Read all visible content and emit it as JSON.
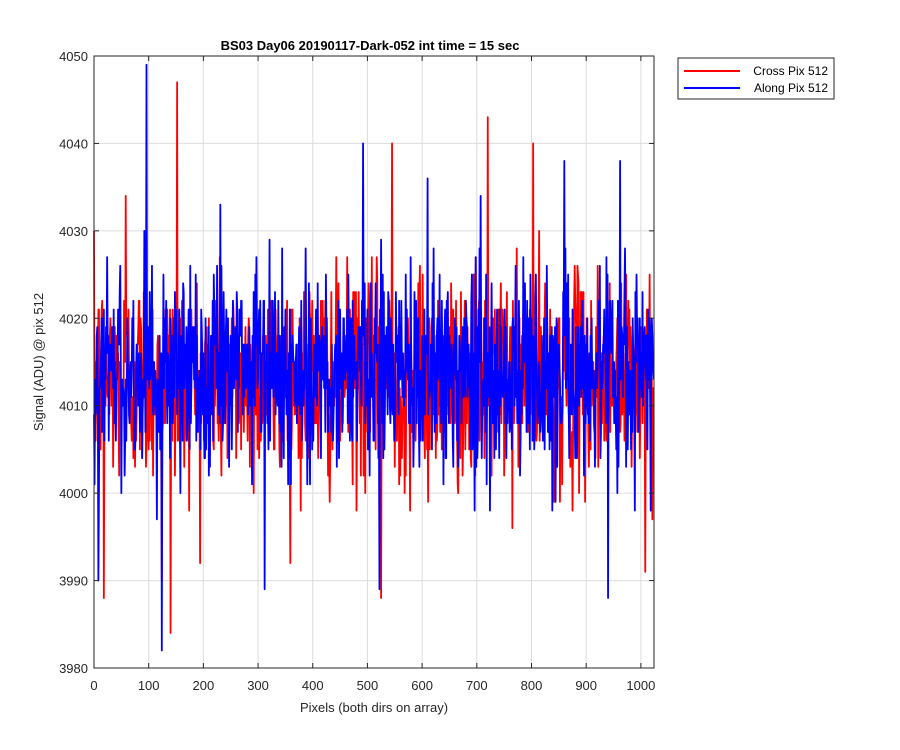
{
  "chart_data": {
    "type": "line",
    "title": "BS03 Day06 20190117-Dark-052 int time = 15 sec",
    "xlabel": "Pixels (both dirs on array)",
    "ylabel": "Signal (ADU) @ pix 512",
    "xlim": [
      0,
      1024
    ],
    "ylim": [
      3980,
      4050
    ],
    "xticks": [
      0,
      100,
      200,
      300,
      400,
      500,
      600,
      700,
      800,
      900,
      1000
    ],
    "yticks": [
      3980,
      3990,
      4000,
      4010,
      4020,
      4030,
      4040,
      4050
    ],
    "grid": true,
    "legend_position": "outside-top-right",
    "series": [
      {
        "name": "Cross Pix 512",
        "color": "#ff0000",
        "mean": 4013,
        "noise_std": 6,
        "n_points": 1024,
        "notable_points": [
          {
            "x": 18,
            "y": 3988
          },
          {
            "x": 58,
            "y": 4034
          },
          {
            "x": 124,
            "y": 3990
          },
          {
            "x": 140,
            "y": 3984
          },
          {
            "x": 152,
            "y": 4047
          },
          {
            "x": 525,
            "y": 3988
          },
          {
            "x": 545,
            "y": 4040
          },
          {
            "x": 720,
            "y": 4043
          },
          {
            "x": 803,
            "y": 4040
          },
          {
            "x": 1008,
            "y": 3991
          }
        ]
      },
      {
        "name": "Along Pix 512",
        "color": "#0000ff",
        "mean": 4014,
        "noise_std": 6,
        "n_points": 1024,
        "notable_points": [
          {
            "x": 8,
            "y": 3990
          },
          {
            "x": 96,
            "y": 4049
          },
          {
            "x": 124,
            "y": 3982
          },
          {
            "x": 312,
            "y": 3989
          },
          {
            "x": 492,
            "y": 4040
          },
          {
            "x": 522,
            "y": 3989
          },
          {
            "x": 860,
            "y": 4038
          },
          {
            "x": 940,
            "y": 3988
          },
          {
            "x": 962,
            "y": 4038
          }
        ]
      }
    ]
  }
}
